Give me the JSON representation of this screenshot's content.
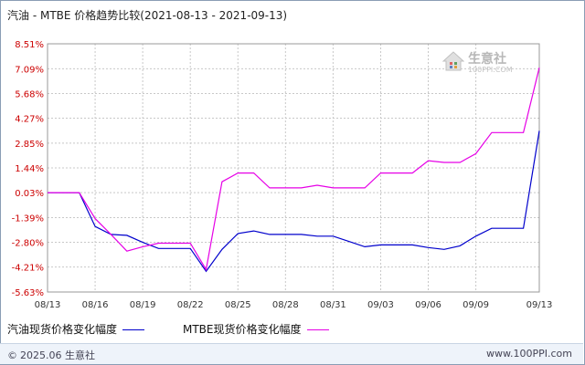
{
  "title": "汽油 - MTBE 价格趋势比较(2021-08-13 - 2021-09-13)",
  "colors": {
    "gasoline": "#0000cc",
    "mtbe": "#e600e6",
    "ytick": "#cc0000",
    "grid": "#c8c8c8"
  },
  "watermark": {
    "name": "生意社",
    "url": "100PPI.COM"
  },
  "footer": {
    "copyright": "2025.06 生意社",
    "copyright_icon": "copyright-icon",
    "site": "www.100PPI.com"
  },
  "chart_data": {
    "type": "line",
    "title": "汽油 - MTBE 价格趋势比较(2021-08-13 - 2021-09-13)",
    "xlabel": "",
    "ylabel": "",
    "x": [
      "08/13",
      "08/14",
      "08/15",
      "08/16",
      "08/17",
      "08/18",
      "08/19",
      "08/20",
      "08/21",
      "08/22",
      "08/23",
      "08/24",
      "08/25",
      "08/26",
      "08/27",
      "08/28",
      "08/29",
      "08/30",
      "08/31",
      "09/01",
      "09/02",
      "09/03",
      "09/04",
      "09/05",
      "09/06",
      "09/07",
      "09/08",
      "09/09",
      "09/10",
      "09/11",
      "09/12",
      "09/13"
    ],
    "xticks": [
      "08/13",
      "08/16",
      "08/19",
      "08/22",
      "08/25",
      "08/28",
      "08/31",
      "09/03",
      "09/06",
      "09/09",
      "09/13"
    ],
    "yticks": [
      8.51,
      7.09,
      5.68,
      4.27,
      2.85,
      1.44,
      0.03,
      -1.39,
      -2.8,
      -4.21,
      -5.63
    ],
    "ytick_labels": [
      "8.51%",
      "7.09%",
      "5.68%",
      "4.27%",
      "2.85%",
      "1.44%",
      "0.03%",
      "-1.39%",
      "-2.80%",
      "-4.21%",
      "-5.63%"
    ],
    "ylim": [
      -5.63,
      8.51
    ],
    "grid": true,
    "legend_position": "bottom-left",
    "series": [
      {
        "name": "汽油现货价格变化幅度",
        "values": [
          0.03,
          0.03,
          0.03,
          -1.9,
          -2.35,
          -2.4,
          -2.8,
          -3.15,
          -3.15,
          -3.15,
          -4.45,
          -3.2,
          -2.3,
          -2.15,
          -2.35,
          -2.35,
          -2.35,
          -2.45,
          -2.45,
          -2.75,
          -3.05,
          -2.95,
          -2.95,
          -2.95,
          -3.1,
          -3.2,
          -3.0,
          -2.45,
          -2.0,
          -2.0,
          -2.0,
          3.55
        ]
      },
      {
        "name": "MTBE现货价格变化幅度",
        "values": [
          0.03,
          0.03,
          0.03,
          -1.45,
          -2.35,
          -3.3,
          -3.05,
          -2.85,
          -2.85,
          -2.85,
          -4.35,
          0.65,
          1.15,
          1.15,
          0.3,
          0.3,
          0.3,
          0.45,
          0.3,
          0.3,
          0.3,
          1.15,
          1.15,
          1.15,
          1.85,
          1.75,
          1.75,
          2.25,
          3.45,
          3.45,
          3.45,
          7.15
        ]
      }
    ]
  }
}
